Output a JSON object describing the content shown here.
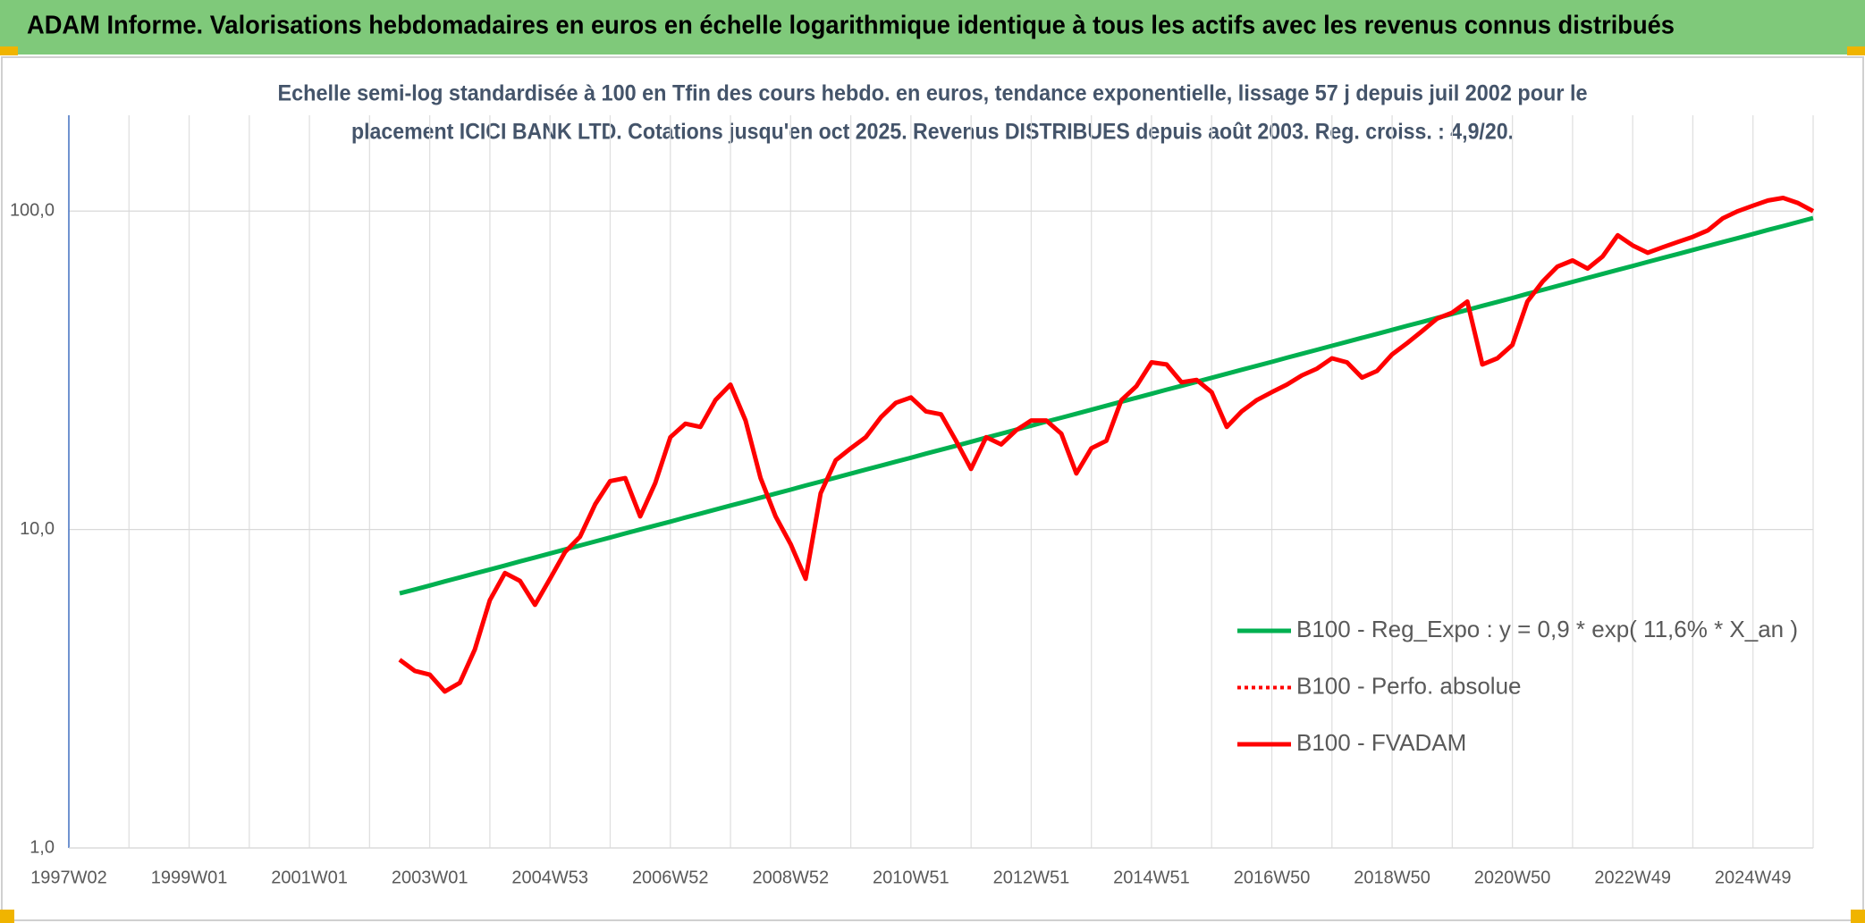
{
  "header": {
    "title": "ADAM Informe. Valorisations hebdomadaires en euros en échelle logarithmique identique à tous les actifs avec les revenus connus distribués"
  },
  "chart_data": {
    "type": "line",
    "title": [
      "Echelle semi-log standardisée à 100 en Tfin des cours hebdo. en euros, tendance exponentielle, lissage 57 j depuis juil 2002 pour le",
      "placement ICICI BANK LTD. Cotations jusqu'en oct 2025. Revenus DISTRIBUES depuis août 2003. Reg. croiss. : 4,9/20."
    ],
    "categories": [
      "1997W02",
      null,
      null,
      null,
      null,
      null,
      null,
      null,
      "1999W01",
      null,
      null,
      null,
      null,
      null,
      null,
      null,
      "2001W01",
      null,
      null,
      null,
      null,
      null,
      null,
      null,
      "2003W01",
      null,
      null,
      null,
      null,
      null,
      null,
      null,
      "2004W53",
      null,
      null,
      null,
      null,
      null,
      null,
      null,
      "2006W52",
      null,
      null,
      null,
      null,
      null,
      null,
      null,
      "2008W52",
      null,
      null,
      null,
      null,
      null,
      null,
      null,
      "2010W51",
      null,
      null,
      null,
      null,
      null,
      null,
      null,
      "2012W51",
      null,
      null,
      null,
      null,
      null,
      null,
      null,
      "2014W51",
      null,
      null,
      null,
      null,
      null,
      null,
      null,
      "2016W50",
      null,
      null,
      null,
      null,
      null,
      null,
      null,
      "2018W50",
      null,
      null,
      null,
      null,
      null,
      null,
      null,
      "2020W50",
      null,
      null,
      null,
      null,
      null,
      null,
      null,
      "2022W49",
      null,
      null,
      null,
      null,
      null,
      null,
      null,
      "2024W49",
      null,
      null,
      null,
      null
    ],
    "series": [
      {
        "name": "B100 - Reg_Expo : y = 0,9 * exp( 11,6% *  X_an )",
        "color": "#00b050",
        "style": "solid",
        "values": [
          null,
          null,
          null,
          null,
          null,
          null,
          null,
          null,
          null,
          null,
          null,
          null,
          null,
          null,
          null,
          null,
          null,
          null,
          null,
          null,
          null,
          null,
          6.3,
          6.48,
          6.67,
          6.87,
          7.07,
          7.28,
          7.49,
          7.71,
          7.94,
          8.17,
          8.41,
          8.66,
          8.91,
          9.17,
          9.44,
          9.72,
          10.0,
          10.29,
          10.59,
          10.91,
          11.22,
          11.55,
          11.89,
          12.24,
          12.6,
          12.97,
          13.34,
          13.75,
          14.14,
          14.55,
          14.98,
          15.42,
          15.87,
          16.33,
          16.81,
          17.31,
          17.81,
          18.33,
          18.87,
          19.43,
          20.0,
          20.58,
          21.18,
          21.82,
          22.44,
          23.1,
          23.78,
          24.48,
          25.2,
          25.93,
          26.69,
          27.49,
          28.27,
          29.11,
          29.96,
          30.84,
          31.75,
          32.67,
          33.62,
          34.64,
          35.64,
          36.67,
          37.75,
          38.86,
          40.0,
          41.16,
          42.36,
          43.64,
          44.88,
          46.2,
          47.56,
          48.96,
          50.4,
          51.86,
          53.37,
          54.99,
          56.55,
          58.21,
          59.93,
          61.69,
          63.5,
          65.34,
          67.25,
          69.28,
          71.25,
          73.34,
          75.5,
          77.72,
          80.0,
          82.32,
          84.72,
          87.28,
          89.76,
          92.4,
          95.12
        ]
      },
      {
        "name": "B100 - Perfo. absolue",
        "color": "#ff0000",
        "style": "dotted",
        "values": [
          null,
          null,
          null,
          null,
          null,
          null,
          null,
          null,
          null,
          null,
          null,
          null,
          null,
          null,
          null,
          null,
          null,
          null,
          null,
          null,
          null,
          null,
          3.9,
          3.6,
          3.5,
          3.1,
          3.3,
          4.2,
          6.0,
          7.3,
          6.9,
          5.8,
          7.0,
          8.5,
          9.5,
          12.0,
          14.2,
          14.5,
          11.0,
          14.0,
          19.5,
          21.5,
          21.0,
          25.5,
          28.5,
          22.0,
          14.5,
          11.0,
          9.0,
          7.0,
          13.0,
          16.5,
          18.0,
          19.5,
          22.5,
          25.0,
          26.0,
          23.5,
          23.0,
          19.0,
          15.5,
          19.5,
          18.5,
          20.5,
          22.0,
          22.0,
          20.0,
          15.0,
          18.0,
          19.0,
          25.5,
          28.2,
          33.5,
          33.0,
          29.0,
          29.5,
          27.0,
          21.0,
          23.5,
          25.5,
          27.0,
          28.5,
          30.5,
          32.0,
          34.5,
          33.5,
          30.0,
          31.5,
          35.5,
          38.5,
          42.0,
          46.0,
          48.0,
          52.0,
          33.0,
          34.5,
          38.0,
          52.0,
          60.0,
          67.0,
          70.0,
          66.0,
          72.0,
          84.0,
          78.0,
          74.0,
          77.0,
          80.0,
          83.0,
          87.0,
          95.0,
          100.0,
          104.0,
          108.0,
          110.0,
          106.0,
          100.0
        ]
      },
      {
        "name": "B100 - FVADAM",
        "color": "#ff0000",
        "style": "solid",
        "values": [
          null,
          null,
          null,
          null,
          null,
          null,
          null,
          null,
          null,
          null,
          null,
          null,
          null,
          null,
          null,
          null,
          null,
          null,
          null,
          null,
          null,
          null,
          3.9,
          3.6,
          3.5,
          3.1,
          3.3,
          4.2,
          6.0,
          7.3,
          6.9,
          5.8,
          7.0,
          8.5,
          9.5,
          12.0,
          14.2,
          14.5,
          11.0,
          14.0,
          19.5,
          21.5,
          21.0,
          25.5,
          28.5,
          22.0,
          14.5,
          11.0,
          9.0,
          7.0,
          13.0,
          16.5,
          18.0,
          19.5,
          22.5,
          25.0,
          26.0,
          23.5,
          23.0,
          19.0,
          15.5,
          19.5,
          18.5,
          20.5,
          22.0,
          22.0,
          20.0,
          15.0,
          18.0,
          19.0,
          25.5,
          28.2,
          33.5,
          33.0,
          29.0,
          29.5,
          27.0,
          21.0,
          23.5,
          25.5,
          27.0,
          28.5,
          30.5,
          32.0,
          34.5,
          33.5,
          30.0,
          31.5,
          35.5,
          38.5,
          42.0,
          46.0,
          48.0,
          52.0,
          33.0,
          34.5,
          38.0,
          52.0,
          60.0,
          67.0,
          70.0,
          66.0,
          72.0,
          84.0,
          78.0,
          74.0,
          77.0,
          80.0,
          83.0,
          87.0,
          95.0,
          100.0,
          104.0,
          108.0,
          110.0,
          106.0,
          100.0
        ]
      }
    ],
    "ylim": [
      1,
      200
    ],
    "log_scale": true,
    "grid": true,
    "yticks": [
      {
        "value": 1,
        "label": "1,0"
      },
      {
        "value": 10,
        "label": "10,0"
      },
      {
        "value": 100,
        "label": "100,0"
      }
    ],
    "legend": "right"
  }
}
